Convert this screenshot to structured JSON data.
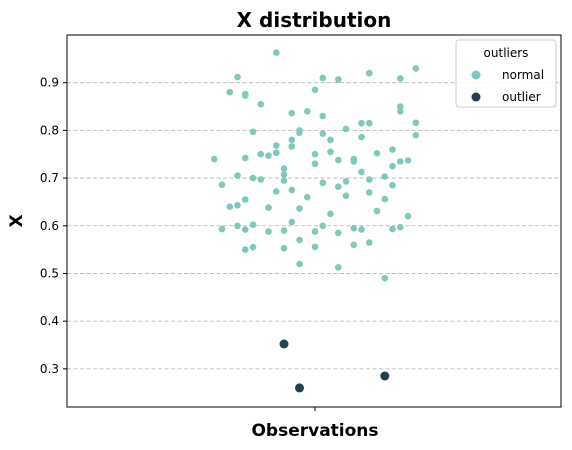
{
  "chart_data": {
    "type": "scatter",
    "title": "X distribution",
    "xlabel": "Observations",
    "ylabel": "X",
    "ylim": [
      0.22,
      1.0
    ],
    "yticks": [
      "0.3",
      "0.4",
      "0.5",
      "0.6",
      "0.7",
      "0.8",
      "0.9"
    ],
    "grid": "y-dashed",
    "legend": {
      "title": "outliers",
      "placement": "top-right",
      "entries": [
        "normal",
        "outlier"
      ]
    },
    "colors": {
      "normal": "#7ec8bd",
      "outlier": "#22404f"
    },
    "series": [
      {
        "name": "normal",
        "color": "#7ec8bd",
        "jitter": [
          -0.05,
          -0.1,
          -0.09,
          0.07,
          -0.07,
          0.03,
          0.01,
          0.13,
          0.07,
          0.11,
          -0.11,
          -0.09,
          0.0,
          -0.03,
          0.11,
          0.01,
          0.13,
          -0.08,
          -0.02,
          0.04,
          0.13,
          0.06,
          0.01,
          -0.07,
          -0.05,
          -0.03,
          -0.02,
          0.06,
          0.1,
          -0.13,
          -0.09,
          -0.05,
          0.03,
          0.0,
          0.08,
          0.1,
          0.12,
          -0.03,
          -0.06,
          0.05,
          0.11,
          0.02,
          0.0,
          -0.04,
          -0.08,
          0.06,
          0.09,
          -0.1,
          -0.04,
          0.01,
          0.04,
          0.07,
          0.1,
          -0.12,
          -0.07,
          -0.03,
          0.03,
          0.07,
          -0.09,
          -0.05,
          -0.01,
          0.04,
          0.09,
          -0.11,
          -0.06,
          -0.02,
          0.02,
          0.08,
          0.12,
          -0.1,
          -0.08,
          -0.03,
          0.01,
          0.05,
          0.1,
          -0.09,
          -0.04,
          0.0,
          0.06,
          0.11,
          -0.12,
          -0.06,
          -0.02,
          0.03,
          0.07,
          -0.08,
          -0.04,
          0.0,
          0.05,
          -0.09,
          -0.02,
          0.03,
          0.09,
          -0.1,
          -0.04,
          0.02,
          0.07,
          0.11,
          -0.01,
          0.05
        ],
        "values": [
          0.963,
          0.912,
          0.873,
          0.92,
          0.855,
          0.907,
          0.91,
          0.93,
          0.92,
          0.909,
          0.88,
          0.876,
          0.885,
          0.836,
          0.84,
          0.83,
          0.816,
          0.797,
          0.8,
          0.803,
          0.79,
          0.815,
          0.793,
          0.75,
          0.768,
          0.78,
          0.795,
          0.786,
          0.76,
          0.74,
          0.742,
          0.753,
          0.738,
          0.75,
          0.752,
          0.725,
          0.737,
          0.766,
          0.747,
          0.74,
          0.735,
          0.755,
          0.73,
          0.708,
          0.7,
          0.713,
          0.703,
          0.705,
          0.695,
          0.69,
          0.693,
          0.697,
          0.685,
          0.686,
          0.697,
          0.675,
          0.682,
          0.67,
          0.655,
          0.672,
          0.66,
          0.663,
          0.656,
          0.64,
          0.638,
          0.636,
          0.625,
          0.631,
          0.62,
          0.6,
          0.602,
          0.608,
          0.6,
          0.595,
          0.593,
          0.592,
          0.59,
          0.588,
          0.592,
          0.597,
          0.593,
          0.588,
          0.57,
          0.585,
          0.565,
          0.555,
          0.553,
          0.556,
          0.56,
          0.55,
          0.52,
          0.513,
          0.49,
          0.643,
          0.72,
          0.78,
          0.815,
          0.85,
          0.84,
          0.735
        ]
      },
      {
        "name": "outlier",
        "color": "#22404f",
        "jitter": [
          -0.04,
          -0.02,
          0.09
        ],
        "values": [
          0.352,
          0.26,
          0.285
        ]
      }
    ]
  }
}
